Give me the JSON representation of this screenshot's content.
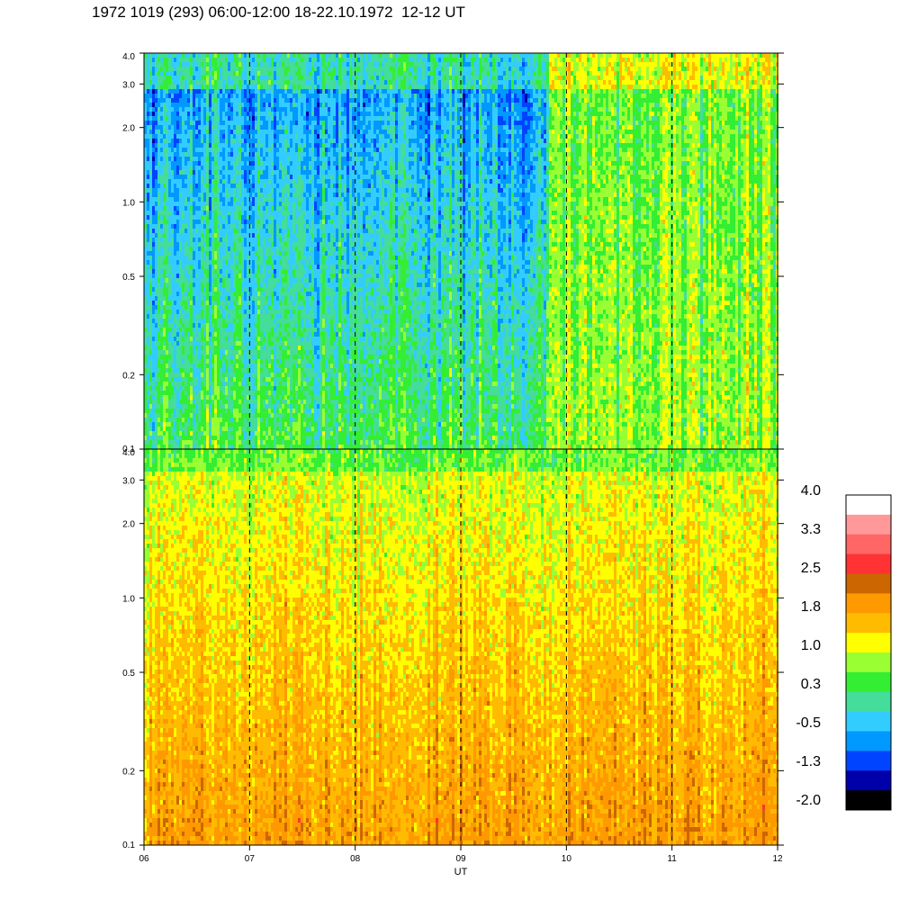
{
  "title": "1972 1019 (293) 06:00-12:00 18-22.10.1972  12-12 UT",
  "chart_data": [
    {
      "type": "heatmap",
      "panel": "top",
      "x_range": [
        6,
        12
      ],
      "xlim_label": "UT",
      "y_scale": "log",
      "ylim": [
        0.1,
        4.0
      ],
      "y_ticks": [
        "4.0",
        "3.0",
        "2.0",
        "1.0",
        "0.5",
        "0.2",
        "0.1"
      ],
      "y_tick_values": [
        4.0,
        3.0,
        2.0,
        1.0,
        0.5,
        0.2,
        0.1
      ],
      "level_before_10": -0.5,
      "level_after_10": 0.6,
      "transition_x": 9.83
    },
    {
      "type": "heatmap",
      "panel": "bottom",
      "x_range": [
        6,
        12
      ],
      "y_scale": "log",
      "ylim": [
        0.1,
        4.0
      ],
      "y_ticks": [
        "4.0",
        "3.0",
        "2.0",
        "1.0",
        "0.5",
        "0.2",
        "0.1"
      ],
      "y_tick_values": [
        4.0,
        3.0,
        2.0,
        1.0,
        0.5,
        0.2,
        0.1
      ],
      "level_low_freq": 1.9,
      "level_high_freq": 1.0
    }
  ],
  "x_axis": {
    "ticks": [
      "06",
      "07",
      "08",
      "09",
      "10",
      "11",
      "12"
    ],
    "tick_values": [
      6,
      7,
      8,
      9,
      10,
      11,
      12
    ],
    "dashed_lines_at": [
      7,
      8,
      9,
      10,
      11
    ],
    "label": "UT"
  },
  "colorbar": {
    "labels": [
      "4.0",
      "3.3",
      "2.5",
      "1.8",
      "1.0",
      "0.3",
      "-0.5",
      "-1.3",
      "-2.0"
    ],
    "colors": [
      "#ffffff",
      "#ff9999",
      "#ff6666",
      "#ff3333",
      "#cc6600",
      "#ff9900",
      "#ffbb00",
      "#ffff00",
      "#99ff33",
      "#33ee33",
      "#44dd99",
      "#33ccff",
      "#0099ff",
      "#0044ff",
      "#0000aa",
      "#000000"
    ]
  }
}
